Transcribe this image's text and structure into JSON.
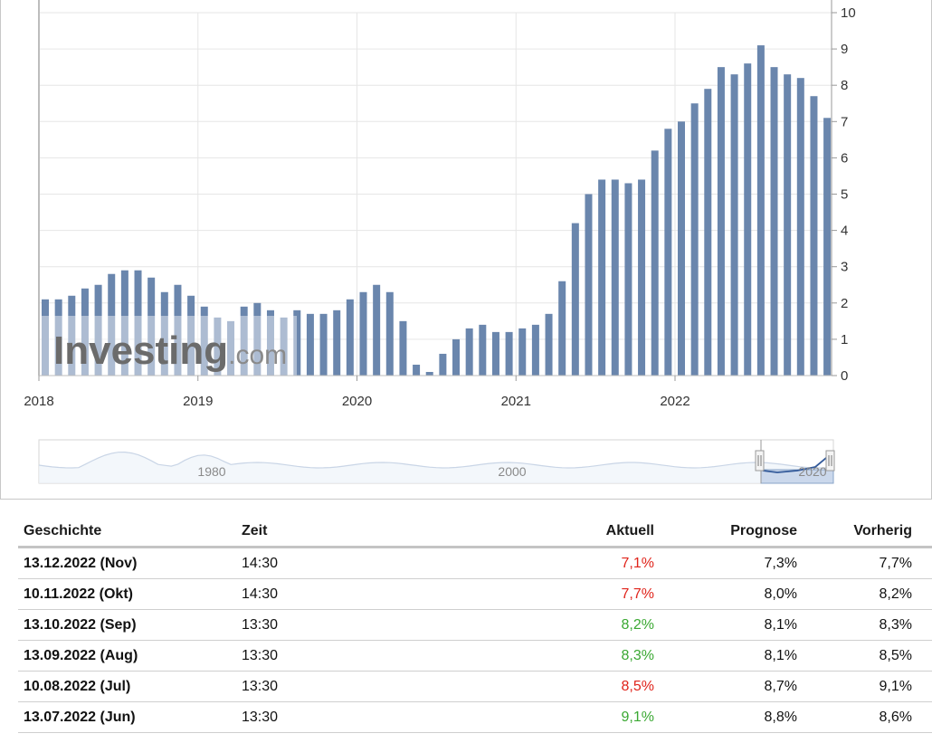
{
  "chart_data": {
    "type": "bar",
    "x_tick_labels": [
      "2018",
      "2019",
      "2020",
      "2021",
      "2022"
    ],
    "y_tick_labels": [
      "0",
      "1",
      "2",
      "3",
      "4",
      "5",
      "6",
      "7",
      "8",
      "9",
      "10"
    ],
    "ylim": [
      0,
      10
    ],
    "y_axis_position": "right",
    "grid": true,
    "bar_color": "#6a86ad",
    "start_month": "2018-01",
    "values": [
      2.1,
      2.1,
      2.2,
      2.4,
      2.5,
      2.8,
      2.9,
      2.9,
      2.7,
      2.3,
      2.5,
      2.2,
      1.9,
      1.6,
      1.5,
      1.9,
      2.0,
      1.8,
      1.6,
      1.8,
      1.7,
      1.7,
      1.8,
      2.1,
      2.3,
      2.5,
      2.3,
      1.5,
      0.3,
      0.1,
      0.6,
      1.0,
      1.3,
      1.4,
      1.2,
      1.2,
      1.3,
      1.4,
      1.7,
      2.6,
      4.2,
      5.0,
      5.4,
      5.4,
      5.3,
      5.4,
      6.2,
      6.8,
      7.0,
      7.5,
      7.9,
      8.5,
      8.3,
      8.6,
      9.1,
      8.5,
      8.3,
      8.2,
      7.7,
      7.1
    ],
    "watermark": "Investing.com",
    "navigator": {
      "tick_labels": [
        "1980",
        "2000",
        "2020"
      ]
    }
  },
  "table": {
    "headers": [
      "Geschichte",
      "Zeit",
      "Aktuell",
      "Prognose",
      "Vorherig"
    ],
    "rows": [
      {
        "date": "13.12.2022 (Nov)",
        "time": "14:30",
        "actual": "7,1%",
        "actual_color": "red",
        "forecast": "7,3%",
        "previous": "7,7%"
      },
      {
        "date": "10.11.2022 (Okt)",
        "time": "14:30",
        "actual": "7,7%",
        "actual_color": "red",
        "forecast": "8,0%",
        "previous": "8,2%"
      },
      {
        "date": "13.10.2022 (Sep)",
        "time": "13:30",
        "actual": "8,2%",
        "actual_color": "green",
        "forecast": "8,1%",
        "previous": "8,3%"
      },
      {
        "date": "13.09.2022 (Aug)",
        "time": "13:30",
        "actual": "8,3%",
        "actual_color": "green",
        "forecast": "8,1%",
        "previous": "8,5%"
      },
      {
        "date": "10.08.2022 (Jul)",
        "time": "13:30",
        "actual": "8,5%",
        "actual_color": "red",
        "forecast": "8,7%",
        "previous": "9,1%"
      },
      {
        "date": "13.07.2022 (Jun)",
        "time": "13:30",
        "actual": "9,1%",
        "actual_color": "green",
        "forecast": "8,8%",
        "previous": "8,6%"
      }
    ]
  }
}
